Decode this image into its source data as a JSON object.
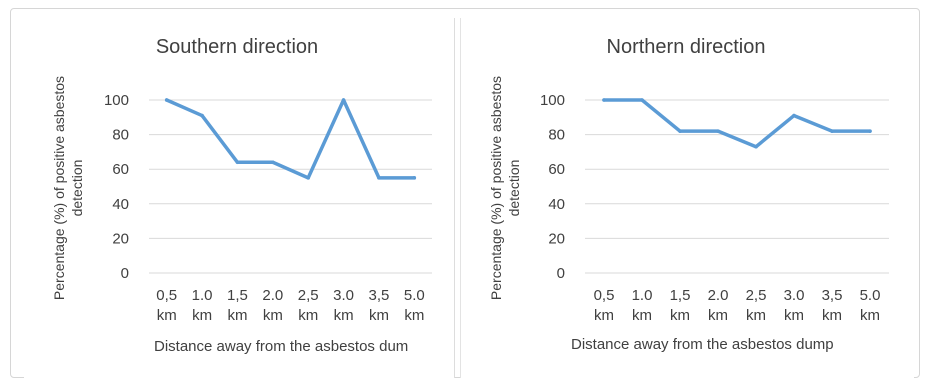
{
  "chart_data": [
    {
      "type": "line",
      "title": "Southern direction",
      "ylabel": "Percentage (%) of positive asbestos detection",
      "xlabel": "Distance away from the asbestos dum",
      "categories": [
        "0,5 km",
        "1.0 km",
        "1,5 km",
        "2.0 km",
        "2,5 km",
        "3.0 km",
        "3,5 km",
        "5.0 km"
      ],
      "values": [
        100,
        91,
        64,
        64,
        55,
        100,
        55,
        55
      ],
      "ylim": [
        0,
        100
      ],
      "yticks": [
        "0",
        "20",
        "40",
        "60",
        "80",
        "100"
      ],
      "grid": true,
      "color": "#5b9bd5"
    },
    {
      "type": "line",
      "title": "Northern direction",
      "ylabel": "Percentage (%) of positive asbestos detection",
      "xlabel": "Distance away from the asbestos dump",
      "categories": [
        "0,5 km",
        "1.0 km",
        "1,5 km",
        "2.0 km",
        "2,5 km",
        "3.0 km",
        "3,5 km",
        "5.0 km"
      ],
      "values": [
        100,
        100,
        82,
        82,
        73,
        91,
        82,
        82
      ],
      "ylim": [
        0,
        100
      ],
      "yticks": [
        "0",
        "20",
        "40",
        "60",
        "80",
        "100"
      ],
      "grid": true,
      "color": "#5b9bd5"
    }
  ]
}
